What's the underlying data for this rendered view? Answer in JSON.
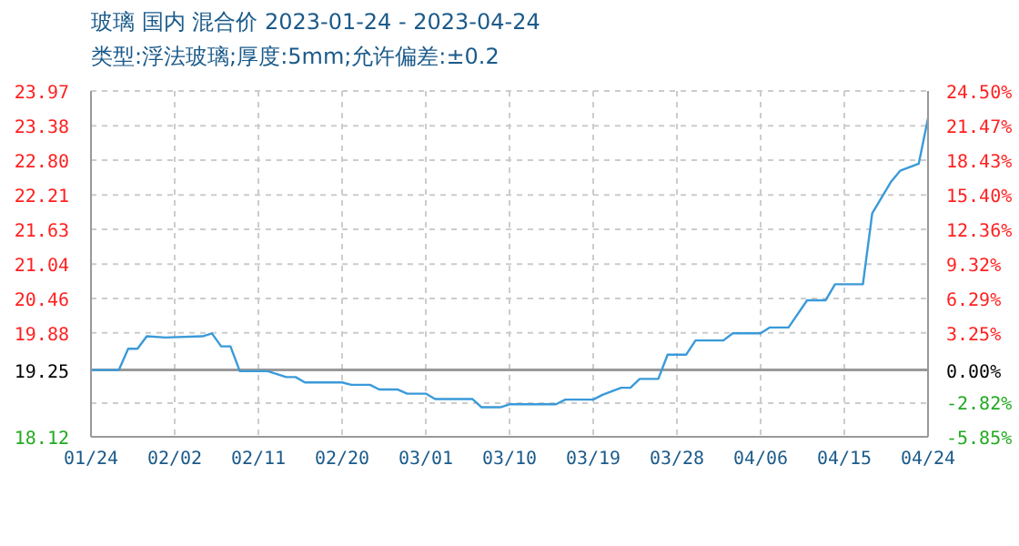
{
  "chart_data": {
    "type": "line",
    "title": "玻璃 国内 混合价 2023-01-24 - 2023-04-24",
    "subtitle": "类型:浮法玻璃;厚度:5mm;允许偏差:±0.2",
    "x": [
      "2023-01-24",
      "2023-01-27",
      "2023-01-28",
      "2023-01-29",
      "2023-01-30",
      "2023-02-01",
      "2023-02-05",
      "2023-02-06",
      "2023-02-07",
      "2023-02-08",
      "2023-02-09",
      "2023-02-12",
      "2023-02-14",
      "2023-02-15",
      "2023-02-16",
      "2023-02-20",
      "2023-02-21",
      "2023-02-23",
      "2023-02-24",
      "2023-02-26",
      "2023-02-27",
      "2023-03-01",
      "2023-03-02",
      "2023-03-06",
      "2023-03-07",
      "2023-03-09",
      "2023-03-10",
      "2023-03-15",
      "2023-03-16",
      "2023-03-19",
      "2023-03-20",
      "2023-03-22",
      "2023-03-23",
      "2023-03-24",
      "2023-03-26",
      "2023-03-27",
      "2023-03-29",
      "2023-03-30",
      "2023-04-02",
      "2023-04-03",
      "2023-04-06",
      "2023-04-07",
      "2023-04-09",
      "2023-04-11",
      "2023-04-13",
      "2023-04-14",
      "2023-04-17",
      "2023-04-18",
      "2023-04-20",
      "2023-04-21",
      "2023-04-23",
      "2023-04-24"
    ],
    "series": [
      {
        "color": "#3a9ad9",
        "values": [
          19.25,
          19.25,
          19.61,
          19.61,
          19.82,
          19.8,
          19.82,
          19.87,
          19.65,
          19.65,
          19.23,
          19.23,
          19.13,
          19.13,
          19.04,
          19.04,
          19.0,
          19.0,
          18.92,
          18.92,
          18.85,
          18.85,
          18.76,
          18.76,
          18.62,
          18.62,
          18.67,
          18.67,
          18.75,
          18.75,
          18.83,
          18.95,
          18.95,
          19.1,
          19.1,
          19.51,
          19.51,
          19.75,
          19.75,
          19.87,
          19.87,
          19.97,
          19.97,
          20.43,
          20.43,
          20.7,
          20.7,
          21.9,
          22.43,
          22.62,
          22.74,
          23.51
        ]
      }
    ],
    "xlim": [
      "2023-01-24",
      "2023-04-24"
    ],
    "xticks": [
      {
        "value": "2023-01-24",
        "label": "01/24"
      },
      {
        "value": "2023-02-02",
        "label": "02/02"
      },
      {
        "value": "2023-02-11",
        "label": "02/11"
      },
      {
        "value": "2023-02-20",
        "label": "02/20"
      },
      {
        "value": "2023-03-01",
        "label": "03/01"
      },
      {
        "value": "2023-03-10",
        "label": "03/10"
      },
      {
        "value": "2023-03-19",
        "label": "03/19"
      },
      {
        "value": "2023-03-28",
        "label": "03/28"
      },
      {
        "value": "2023-04-06",
        "label": "04/06"
      },
      {
        "value": "2023-04-15",
        "label": "04/15"
      },
      {
        "value": "2023-04-24",
        "label": "04/24"
      }
    ],
    "ylim": [
      18.12,
      23.97
    ],
    "yticks": [
      18.12,
      {
        "value": 18.69,
        "label": null
      },
      19.25,
      19.88,
      20.46,
      21.04,
      21.63,
      22.21,
      {
        "value": 22.8,
        "label": "22.80"
      },
      23.38,
      23.97
    ],
    "y2lim": [
      -5.85,
      24.5
    ],
    "y2ticks": [
      {
        "value": -5.85,
        "label": "-5.85%"
      },
      {
        "value": -2.82,
        "label": "-2.82%"
      },
      {
        "value": 0,
        "label": "0.00%"
      },
      {
        "value": 3.25,
        "label": "3.25%"
      },
      {
        "value": 6.29,
        "label": "6.29%"
      },
      {
        "value": 9.32,
        "label": "9.32%"
      },
      {
        "value": 12.36,
        "label": "12.36%"
      },
      {
        "value": 15.4,
        "label": "15.40%"
      },
      {
        "value": 18.43,
        "label": "18.43%"
      },
      {
        "value": 21.47,
        "label": "21.47%"
      },
      {
        "value": 24.5,
        "label": "24.50%"
      }
    ],
    "ref_lines": [
      {
        "axis": "y",
        "value": 19.25,
        "color": "#999999"
      }
    ],
    "grid": true,
    "marker": "none",
    "line_style": "solid"
  }
}
